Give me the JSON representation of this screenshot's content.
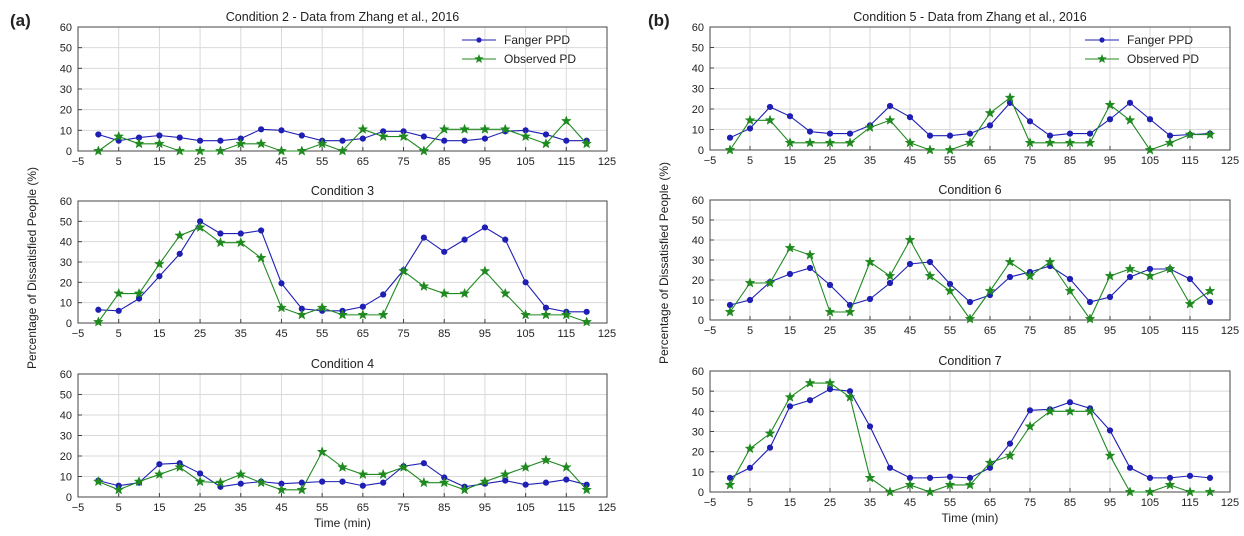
{
  "figure": {
    "ylabel_left": "Percentage of Dissatisfied People (%)",
    "ylabel_right": "Percentage of Dissatisfied People (%)",
    "panel_a_label": "(a)",
    "panel_b_label": "(b)"
  },
  "colors": {
    "fanger": "#1f1fb4",
    "observed": "#1f8a1f",
    "grid": "#d9d9d9",
    "axis": "#444444"
  },
  "chart_data": [
    {
      "id": "c2",
      "type": "line",
      "title": "Condition 2 - Data from Zhang et al., 2016",
      "xlabel": "",
      "ylabel": "",
      "xlim": [
        -5,
        125
      ],
      "ylim": [
        0,
        60
      ],
      "xticks": [
        -5,
        5,
        15,
        25,
        35,
        45,
        55,
        65,
        75,
        85,
        95,
        105,
        115,
        125
      ],
      "yticks": [
        0,
        10,
        20,
        30,
        40,
        50,
        60
      ],
      "grid": true,
      "legend": "top-right",
      "x": [
        0,
        5,
        10,
        15,
        20,
        25,
        30,
        35,
        40,
        45,
        50,
        55,
        60,
        65,
        70,
        75,
        80,
        85,
        90,
        95,
        100,
        105,
        110,
        115,
        120
      ],
      "series": [
        {
          "name": "Fanger PPD",
          "marker": "circle",
          "values": [
            8,
            5,
            6.5,
            7.5,
            6.5,
            5,
            5,
            6,
            10.5,
            10,
            7.5,
            5,
            5,
            6,
            9.5,
            9.5,
            7,
            5,
            5,
            6,
            9.5,
            10,
            8,
            5,
            5
          ]
        },
        {
          "name": "Observed PD",
          "marker": "star",
          "values": [
            0,
            7,
            3.5,
            3.5,
            0,
            0,
            0,
            3.5,
            3.5,
            0,
            0,
            3.5,
            0,
            10.5,
            7,
            7,
            0,
            10.5,
            10.5,
            10.5,
            10.5,
            7,
            3.5,
            14.5,
            3.5
          ]
        }
      ]
    },
    {
      "id": "c3",
      "type": "line",
      "title": "Condition 3",
      "xlabel": "",
      "ylabel": "",
      "xlim": [
        -5,
        125
      ],
      "ylim": [
        0,
        60
      ],
      "xticks": [
        -5,
        5,
        15,
        25,
        35,
        45,
        55,
        65,
        75,
        85,
        95,
        105,
        115,
        125
      ],
      "yticks": [
        0,
        10,
        20,
        30,
        40,
        50,
        60
      ],
      "grid": true,
      "x": [
        0,
        5,
        10,
        15,
        20,
        25,
        30,
        35,
        40,
        45,
        50,
        55,
        60,
        65,
        70,
        75,
        80,
        85,
        90,
        95,
        100,
        105,
        110,
        115,
        120
      ],
      "series": [
        {
          "name": "Fanger PPD",
          "marker": "circle",
          "values": [
            6.5,
            6,
            12,
            23,
            34,
            50,
            44,
            44,
            45.5,
            19.5,
            7,
            6,
            6,
            8,
            14,
            26,
            42,
            35,
            41,
            47,
            41,
            20,
            7.5,
            5.5,
            5.5
          ]
        },
        {
          "name": "Observed PD",
          "marker": "star",
          "values": [
            0.5,
            14.5,
            14.5,
            29,
            43,
            47,
            39.5,
            39.5,
            32,
            7.5,
            4,
            7.5,
            4,
            4,
            4,
            25.5,
            18,
            14.5,
            14.5,
            25.5,
            14.5,
            4,
            4,
            4,
            0.5
          ]
        }
      ]
    },
    {
      "id": "c4",
      "type": "line",
      "title": "Condition 4",
      "xlabel": "Time (min)",
      "ylabel": "",
      "xlim": [
        -5,
        125
      ],
      "ylim": [
        0,
        60
      ],
      "xticks": [
        -5,
        5,
        15,
        25,
        35,
        45,
        55,
        65,
        75,
        85,
        95,
        105,
        115,
        125
      ],
      "yticks": [
        0,
        10,
        20,
        30,
        40,
        50,
        60
      ],
      "grid": true,
      "x": [
        0,
        5,
        10,
        15,
        20,
        25,
        30,
        35,
        40,
        45,
        50,
        55,
        60,
        65,
        70,
        75,
        80,
        85,
        90,
        95,
        100,
        105,
        110,
        115,
        120
      ],
      "series": [
        {
          "name": "Fanger PPD",
          "marker": "circle",
          "values": [
            8,
            5.5,
            7,
            16,
            16.5,
            11.5,
            5,
            6.5,
            7.5,
            6.5,
            7,
            7.5,
            7.5,
            5.5,
            7,
            15,
            16.5,
            9.5,
            5,
            6.5,
            8,
            6,
            7,
            8.5,
            6
          ]
        },
        {
          "name": "Observed PD",
          "marker": "star",
          "values": [
            7.5,
            3.5,
            7.5,
            11,
            14.5,
            7.5,
            7,
            11,
            7,
            3.5,
            3.5,
            22,
            14.5,
            11,
            11,
            14.5,
            7,
            7,
            3.5,
            7.5,
            11,
            14.5,
            18,
            14.5,
            3.5
          ]
        }
      ]
    },
    {
      "id": "c5",
      "type": "line",
      "title": "Condition 5 - Data from Zhang et al., 2016",
      "xlabel": "",
      "ylabel": "",
      "xlim": [
        -5,
        125
      ],
      "ylim": [
        0,
        60
      ],
      "xticks": [
        -5,
        5,
        15,
        25,
        35,
        45,
        55,
        65,
        75,
        85,
        95,
        105,
        115,
        125
      ],
      "yticks": [
        0,
        10,
        20,
        30,
        40,
        50,
        60
      ],
      "grid": true,
      "legend": "top-right",
      "x": [
        0,
        5,
        10,
        15,
        20,
        25,
        30,
        35,
        40,
        45,
        50,
        55,
        60,
        65,
        70,
        75,
        80,
        85,
        90,
        95,
        100,
        105,
        110,
        115,
        120
      ],
      "series": [
        {
          "name": "Fanger PPD",
          "marker": "circle",
          "values": [
            6,
            10.5,
            21,
            16.5,
            9,
            8,
            8,
            12,
            21.5,
            16,
            7,
            7,
            8,
            12,
            23,
            14,
            7,
            8,
            8,
            15,
            23,
            15,
            7,
            7.5,
            8
          ]
        },
        {
          "name": "Observed PD",
          "marker": "star",
          "values": [
            0,
            14.5,
            14.5,
            3.5,
            3.5,
            3.5,
            3.5,
            11,
            14.5,
            3.5,
            0,
            0,
            3.5,
            18,
            25.5,
            3.5,
            3.5,
            3.5,
            3.5,
            22,
            14.5,
            0,
            3.5,
            7.5,
            7.5
          ]
        }
      ]
    },
    {
      "id": "c6",
      "type": "line",
      "title": "Condition 6",
      "xlabel": "",
      "ylabel": "",
      "xlim": [
        -5,
        125
      ],
      "ylim": [
        0,
        60
      ],
      "xticks": [
        -5,
        5,
        15,
        25,
        35,
        45,
        55,
        65,
        75,
        85,
        95,
        105,
        115,
        125
      ],
      "yticks": [
        0,
        10,
        20,
        30,
        40,
        50,
        60
      ],
      "grid": true,
      "x": [
        0,
        5,
        10,
        15,
        20,
        25,
        30,
        35,
        40,
        45,
        50,
        55,
        60,
        65,
        70,
        75,
        80,
        85,
        90,
        95,
        100,
        105,
        110,
        115,
        120
      ],
      "series": [
        {
          "name": "Fanger PPD",
          "marker": "circle",
          "values": [
            7.5,
            10,
            19,
            23,
            26,
            17.5,
            7.5,
            10.5,
            18.5,
            28,
            29,
            18,
            9,
            12.5,
            21.5,
            24,
            27,
            20.5,
            9,
            11.5,
            21.5,
            25.5,
            25.5,
            20.5,
            9
          ]
        },
        {
          "name": "Observed PD",
          "marker": "star",
          "values": [
            4,
            18.5,
            18.5,
            36,
            32.5,
            4,
            4,
            29,
            22,
            40,
            22,
            14.5,
            0.5,
            14.5,
            29,
            22,
            29,
            14.5,
            0.5,
            22,
            25.5,
            22,
            25.5,
            8,
            14.5
          ]
        }
      ]
    },
    {
      "id": "c7",
      "type": "line",
      "title": "Condition 7",
      "xlabel": "Time (min)",
      "ylabel": "",
      "xlim": [
        -5,
        125
      ],
      "ylim": [
        0,
        60
      ],
      "xticks": [
        -5,
        5,
        15,
        25,
        35,
        45,
        55,
        65,
        75,
        85,
        95,
        105,
        115,
        125
      ],
      "yticks": [
        0,
        10,
        20,
        30,
        40,
        50,
        60
      ],
      "grid": true,
      "x": [
        0,
        5,
        10,
        15,
        20,
        25,
        30,
        35,
        40,
        45,
        50,
        55,
        60,
        65,
        70,
        75,
        80,
        85,
        90,
        95,
        100,
        105,
        110,
        115,
        120
      ],
      "series": [
        {
          "name": "Fanger PPD",
          "marker": "circle",
          "values": [
            7,
            12,
            22,
            42.5,
            45.5,
            51,
            50,
            32.5,
            12,
            7,
            7,
            7.5,
            7,
            12,
            24,
            40.5,
            41,
            44.5,
            41.5,
            30.5,
            12,
            7,
            7,
            8,
            7
          ]
        },
        {
          "name": "Observed PD",
          "marker": "star",
          "values": [
            3.5,
            21.5,
            29,
            47,
            54,
            54,
            47,
            7,
            0,
            3.5,
            0,
            3.5,
            3.5,
            14.5,
            18,
            32.5,
            40,
            40,
            40,
            18,
            0,
            0,
            3.5,
            0,
            0
          ]
        }
      ]
    }
  ]
}
